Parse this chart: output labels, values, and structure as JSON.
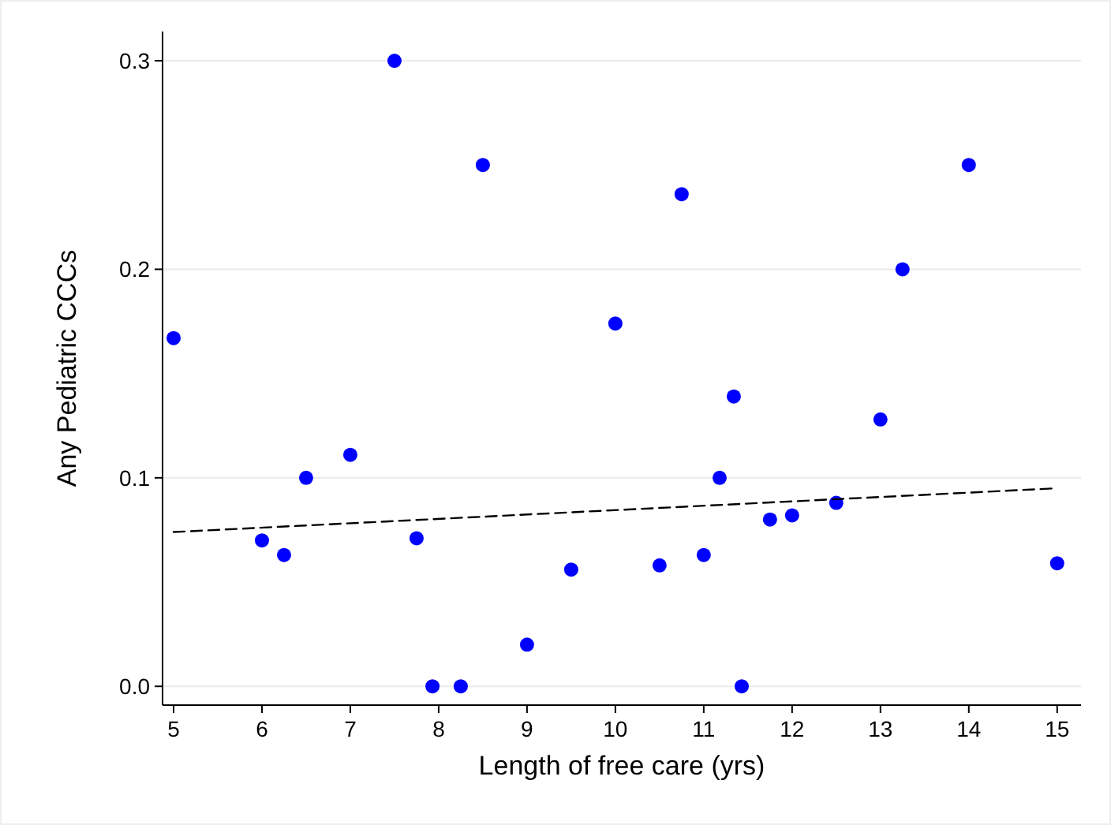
{
  "chart_data": {
    "type": "scatter",
    "xlabel": "Length of free care (yrs)",
    "ylabel": "Any Pediatric CCCs",
    "xlim": [
      4.875,
      15.27
    ],
    "ylim": [
      -0.009,
      0.314
    ],
    "xticks": [
      5,
      6,
      7,
      8,
      9,
      10,
      11,
      12,
      13,
      14,
      15
    ],
    "yticks": [
      {
        "value": 0,
        "label": "0.0"
      },
      {
        "value": 0.1,
        "label": "0.1"
      },
      {
        "value": 0.2,
        "label": "0.2"
      },
      {
        "value": 0.3,
        "label": "0.3"
      }
    ],
    "grid": "y",
    "x": [
      5,
      6,
      6.25,
      6.5,
      7,
      7.5,
      7.75,
      7.93,
      8.25,
      8.5,
      9,
      9.5,
      10,
      10.5,
      10.75,
      11,
      11.18,
      11.34,
      11.43,
      11.75,
      12,
      12.5,
      13,
      13.25,
      14,
      15
    ],
    "series": [
      {
        "marker": "circle",
        "color": "#0000ff",
        "values": [
          0.167,
          0.07,
          0.063,
          0.1,
          0.111,
          0.3,
          0.071,
          0,
          0,
          0.25,
          0.02,
          0.056,
          0.174,
          0.058,
          0.236,
          0.063,
          0.1,
          0.139,
          0,
          0.08,
          0.082,
          0.088,
          0.128,
          0.2,
          0.25,
          0.059
        ]
      },
      {
        "type": "line",
        "color": "#000000",
        "line_style": "dashed",
        "marker": "none",
        "x": [
          5,
          15
        ],
        "values": [
          0.074,
          0.095
        ]
      }
    ]
  }
}
